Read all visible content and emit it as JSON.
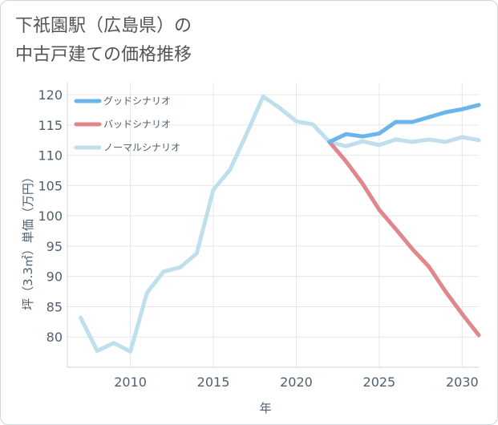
{
  "title": {
    "line1": "下祇園駅（広島県）の",
    "line2": "中古戸建ての価格推移"
  },
  "chart_data": {
    "type": "line",
    "xlabel": "年",
    "ylabel": "坪（3.3㎡）単価（万円）",
    "xlim": [
      2006.2,
      2031
    ],
    "ylim": [
      75,
      122
    ],
    "xticks": [
      2010,
      2015,
      2020,
      2025,
      2030
    ],
    "yticks": [
      80,
      85,
      90,
      95,
      100,
      105,
      110,
      115,
      120
    ],
    "grid": true,
    "legend_position": "top-left",
    "series": [
      {
        "name": "ノーマルシナリオ",
        "color": "#bfdfec",
        "x": [
          2007,
          2008,
          2009,
          2010,
          2011,
          2012,
          2013,
          2014,
          2015,
          2016,
          2017,
          2018,
          2019,
          2020,
          2021,
          2022,
          2023,
          2024,
          2025,
          2026,
          2027,
          2028,
          2029,
          2030,
          2031
        ],
        "values": [
          83.2,
          77.7,
          79.0,
          77.6,
          87.3,
          90.8,
          91.5,
          93.8,
          104.3,
          107.6,
          113.5,
          119.7,
          117.8,
          115.6,
          115.1,
          112.2,
          111.5,
          112.3,
          111.7,
          112.6,
          112.2,
          112.6,
          112.2,
          113.0,
          112.5
        ]
      },
      {
        "name": "バッドシナリオ",
        "color": "#e0868d",
        "x": [
          2022,
          2023,
          2024,
          2025,
          2026,
          2027,
          2028,
          2029,
          2030,
          2031
        ],
        "values": [
          112.2,
          109.0,
          105.3,
          101.0,
          97.8,
          94.5,
          91.6,
          87.5,
          83.8,
          80.3
        ]
      },
      {
        "name": "グッドシナリオ",
        "color": "#6cb5ec",
        "x": [
          2022,
          2023,
          2024,
          2025,
          2026,
          2027,
          2028,
          2029,
          2030,
          2031
        ],
        "values": [
          112.2,
          113.5,
          113.1,
          113.6,
          115.5,
          115.5,
          116.3,
          117.1,
          117.6,
          118.3
        ]
      }
    ],
    "legend": [
      {
        "label": "グッドシナリオ",
        "color": "#6cb5ec"
      },
      {
        "label": "バッドシナリオ",
        "color": "#e0868d"
      },
      {
        "label": "ノーマルシナリオ",
        "color": "#bfdfec"
      }
    ]
  }
}
